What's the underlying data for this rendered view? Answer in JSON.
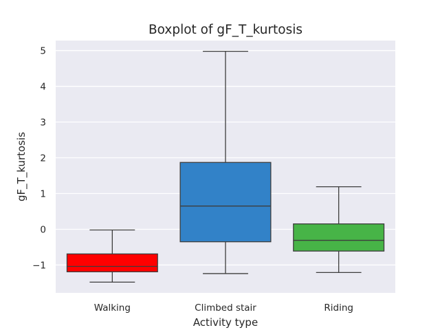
{
  "chart_data": {
    "type": "box",
    "title": "Boxplot of gF_T_kurtosis",
    "xlabel": "Activity type",
    "ylabel": "gF_T_kurtosis",
    "ylim": [
      -1.78,
      5.28
    ],
    "yticks": [
      5,
      4,
      3,
      2,
      1,
      0,
      -1
    ],
    "ytick_labels": [
      "5",
      "4",
      "3",
      "2",
      "1",
      "0",
      "−1"
    ],
    "grid": true,
    "categories": [
      "Walking",
      "Climbed stair",
      "Riding"
    ],
    "boxes": [
      {
        "category": "Walking",
        "whisker_low": -1.48,
        "q1": -1.19,
        "median": -1.04,
        "q3": -0.69,
        "whisker_high": -0.02,
        "color": "#ff0000"
      },
      {
        "category": "Climbed stair",
        "whisker_low": -1.24,
        "q1": -0.35,
        "median": 0.65,
        "q3": 1.87,
        "whisker_high": 4.98,
        "color": "#3282c8"
      },
      {
        "category": "Riding",
        "whisker_low": -1.21,
        "q1": -0.61,
        "median": -0.31,
        "q3": 0.15,
        "whisker_high": 1.19,
        "color": "#47b447"
      }
    ],
    "plot_background": "#eaeaf2",
    "line_color": "#3d3d3d"
  }
}
